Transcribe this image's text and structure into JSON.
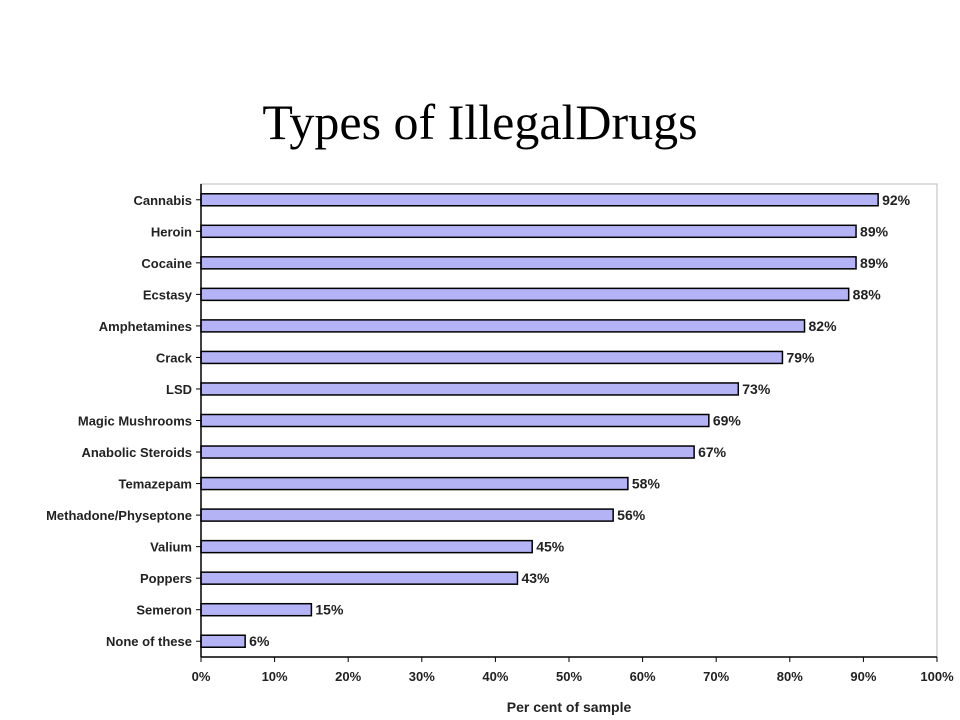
{
  "title": "Types of IllegalDrugs",
  "chart_data": {
    "type": "bar",
    "orientation": "horizontal",
    "categories": [
      "Cannabis",
      "Heroin",
      "Cocaine",
      "Ecstasy",
      "Amphetamines",
      "Crack",
      "LSD",
      "Magic Mushrooms",
      "Anabolic Steroids",
      "Temazepam",
      "Methadone/Physeptone",
      "Valium",
      "Poppers",
      "Semeron",
      "None of these"
    ],
    "values": [
      92,
      89,
      89,
      88,
      82,
      79,
      73,
      69,
      67,
      58,
      56,
      45,
      43,
      15,
      6
    ],
    "value_labels": [
      "92%",
      "89%",
      "89%",
      "88%",
      "82%",
      "79%",
      "73%",
      "69%",
      "67%",
      "58%",
      "56%",
      "45%",
      "43%",
      "15%",
      "6%"
    ],
    "xlabel": "Per cent of sample",
    "xlim": [
      0,
      100
    ],
    "x_ticks": [
      0,
      10,
      20,
      30,
      40,
      50,
      60,
      70,
      80,
      90,
      100
    ],
    "x_tick_labels": [
      "0%",
      "10%",
      "20%",
      "30%",
      "40%",
      "50%",
      "60%",
      "70%",
      "80%",
      "90%",
      "100%"
    ],
    "bar_color": "#b3b3f5",
    "bar_edge_color": "#000000",
    "grid": false
  }
}
